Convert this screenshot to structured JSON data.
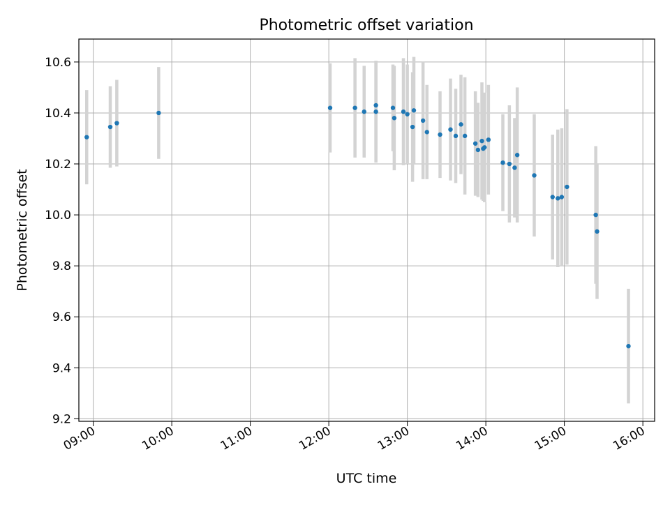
{
  "chart_data": {
    "type": "scatter",
    "title": "Photometric offset variation",
    "xlabel": "UTC time",
    "ylabel": "Photometric offset",
    "xlim": [
      "08:49",
      "16:09"
    ],
    "ylim": [
      9.19,
      10.69
    ],
    "x_ticks": [
      "09:00",
      "10:00",
      "11:00",
      "12:00",
      "13:00",
      "14:00",
      "15:00",
      "16:00"
    ],
    "y_ticks": [
      "9.2",
      "9.4",
      "9.6",
      "9.8",
      "10.0",
      "10.2",
      "10.4",
      "10.6"
    ],
    "grid": true,
    "marker_color": "#1f77b4",
    "errorbar_color": "#d3d3d3",
    "series": [
      {
        "points": [
          {
            "t": "08:55",
            "y": 10.305,
            "err": 0.185
          },
          {
            "t": "09:13",
            "y": 10.345,
            "err": 0.16
          },
          {
            "t": "09:18",
            "y": 10.36,
            "err": 0.17
          },
          {
            "t": "09:50",
            "y": 10.4,
            "err": 0.18
          },
          {
            "t": "12:01",
            "y": 10.42,
            "err": 0.175
          },
          {
            "t": "12:20",
            "y": 10.42,
            "err": 0.195
          },
          {
            "t": "12:27",
            "y": 10.405,
            "err": 0.18
          },
          {
            "t": "12:36",
            "y": 10.405,
            "err": 0.2
          },
          {
            "t": "12:36",
            "y": 10.43,
            "err": 0.175
          },
          {
            "t": "12:49",
            "y": 10.42,
            "err": 0.17
          },
          {
            "t": "12:50",
            "y": 10.38,
            "err": 0.205
          },
          {
            "t": "12:57",
            "y": 10.405,
            "err": 0.21
          },
          {
            "t": "13:00",
            "y": 10.395,
            "err": 0.195
          },
          {
            "t": "13:04",
            "y": 10.345,
            "err": 0.215
          },
          {
            "t": "13:05",
            "y": 10.41,
            "err": 0.21
          },
          {
            "t": "13:12",
            "y": 10.37,
            "err": 0.23
          },
          {
            "t": "13:15",
            "y": 10.325,
            "err": 0.185
          },
          {
            "t": "13:25",
            "y": 10.315,
            "err": 0.17
          },
          {
            "t": "13:33",
            "y": 10.335,
            "err": 0.2
          },
          {
            "t": "13:37",
            "y": 10.31,
            "err": 0.185
          },
          {
            "t": "13:41",
            "y": 10.355,
            "err": 0.195
          },
          {
            "t": "13:44",
            "y": 10.31,
            "err": 0.23
          },
          {
            "t": "13:52",
            "y": 10.28,
            "err": 0.205
          },
          {
            "t": "13:54",
            "y": 10.255,
            "err": 0.185
          },
          {
            "t": "13:57",
            "y": 10.29,
            "err": 0.23
          },
          {
            "t": "13:58",
            "y": 10.26,
            "err": 0.205
          },
          {
            "t": "13:59",
            "y": 10.265,
            "err": 0.215
          },
          {
            "t": "14:02",
            "y": 10.295,
            "err": 0.215
          },
          {
            "t": "14:13",
            "y": 10.205,
            "err": 0.19
          },
          {
            "t": "14:18",
            "y": 10.2,
            "err": 0.23
          },
          {
            "t": "14:22",
            "y": 10.185,
            "err": 0.195
          },
          {
            "t": "14:24",
            "y": 10.235,
            "err": 0.265
          },
          {
            "t": "14:37",
            "y": 10.155,
            "err": 0.24
          },
          {
            "t": "14:51",
            "y": 10.07,
            "err": 0.245
          },
          {
            "t": "14:55",
            "y": 10.065,
            "err": 0.27
          },
          {
            "t": "14:58",
            "y": 10.07,
            "err": 0.27
          },
          {
            "t": "15:02",
            "y": 10.11,
            "err": 0.305
          },
          {
            "t": "15:24",
            "y": 10.0,
            "err": 0.27
          },
          {
            "t": "15:25",
            "y": 9.935,
            "err": 0.265
          },
          {
            "t": "15:49",
            "y": 9.485,
            "err": 0.225
          }
        ]
      }
    ]
  }
}
